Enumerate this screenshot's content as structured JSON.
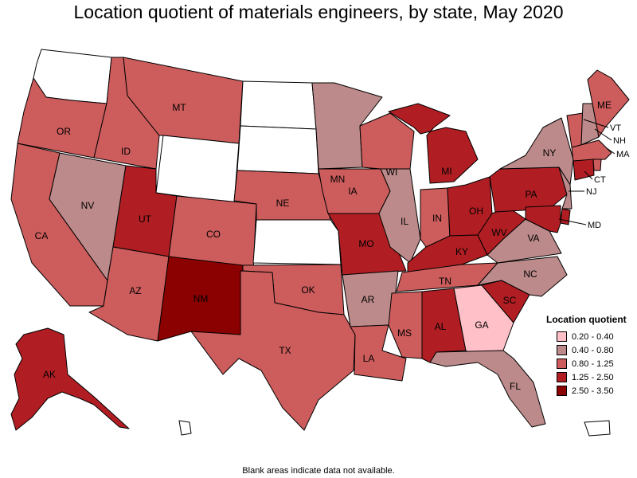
{
  "title": "Location quotient of materials engineers, by state, May 2020",
  "footnote": "Blank areas indicate data not available.",
  "legend": {
    "title": "Location quotient",
    "items": [
      {
        "label": "0.20 - 0.40",
        "color": "#ffc0c8"
      },
      {
        "label": "0.40 - 0.80",
        "color": "#bc8a8a"
      },
      {
        "label": "0.80 - 1.25",
        "color": "#cd5c5c"
      },
      {
        "label": "1.25 - 2.50",
        "color": "#b01e23"
      },
      {
        "label": "2.50 - 3.50",
        "color": "#8b0000"
      }
    ]
  },
  "no_data_color": "#ffffff",
  "states": {
    "WA": {
      "label": "",
      "class": "none"
    },
    "OR": {
      "label": "OR",
      "class": "0.80 - 1.25"
    },
    "CA": {
      "label": "CA",
      "class": "0.80 - 1.25"
    },
    "ID": {
      "label": "ID",
      "class": "0.80 - 1.25"
    },
    "NV": {
      "label": "NV",
      "class": "0.40 - 0.80"
    },
    "MT": {
      "label": "MT",
      "class": "0.80 - 1.25"
    },
    "WY": {
      "label": "",
      "class": "none"
    },
    "UT": {
      "label": "UT",
      "class": "1.25 - 2.50"
    },
    "AZ": {
      "label": "AZ",
      "class": "0.80 - 1.25"
    },
    "CO": {
      "label": "CO",
      "class": "0.80 - 1.25"
    },
    "NM": {
      "label": "NM",
      "class": "2.50 - 3.50"
    },
    "ND": {
      "label": "",
      "class": "none"
    },
    "SD": {
      "label": "",
      "class": "none"
    },
    "NE": {
      "label": "NE",
      "class": "0.80 - 1.25"
    },
    "KS": {
      "label": "",
      "class": "none"
    },
    "OK": {
      "label": "OK",
      "class": "0.80 - 1.25"
    },
    "TX": {
      "label": "TX",
      "class": "0.80 - 1.25"
    },
    "MN": {
      "label": "MN",
      "class": "0.40 - 0.80"
    },
    "IA": {
      "label": "IA",
      "class": "0.80 - 1.25"
    },
    "MO": {
      "label": "MO",
      "class": "1.25 - 2.50"
    },
    "AR": {
      "label": "AR",
      "class": "0.40 - 0.80"
    },
    "LA": {
      "label": "LA",
      "class": "0.80 - 1.25"
    },
    "WI": {
      "label": "WI",
      "class": "0.80 - 1.25"
    },
    "IL": {
      "label": "IL",
      "class": "0.40 - 0.80"
    },
    "MI": {
      "label": "MI",
      "class": "1.25 - 2.50"
    },
    "IN": {
      "label": "IN",
      "class": "0.80 - 1.25"
    },
    "OH": {
      "label": "OH",
      "class": "1.25 - 2.50"
    },
    "KY": {
      "label": "KY",
      "class": "1.25 - 2.50"
    },
    "TN": {
      "label": "TN",
      "class": "0.80 - 1.25"
    },
    "MS": {
      "label": "MS",
      "class": "0.80 - 1.25"
    },
    "AL": {
      "label": "AL",
      "class": "1.25 - 2.50"
    },
    "GA": {
      "label": "GA",
      "class": "0.20 - 0.40"
    },
    "FL": {
      "label": "FL",
      "class": "0.40 - 0.80"
    },
    "SC": {
      "label": "SC",
      "class": "1.25 - 2.50"
    },
    "NC": {
      "label": "NC",
      "class": "0.40 - 0.80"
    },
    "VA": {
      "label": "VA",
      "class": "0.40 - 0.80"
    },
    "WV": {
      "label": "WV",
      "class": "1.25 - 2.50"
    },
    "PA": {
      "label": "PA",
      "class": "1.25 - 2.50"
    },
    "NY": {
      "label": "NY",
      "class": "0.40 - 0.80"
    },
    "ME": {
      "label": "ME",
      "class": "0.80 - 1.25"
    },
    "VT": {
      "label": "VT",
      "class": "0.80 - 1.25"
    },
    "NH": {
      "label": "NH",
      "class": "0.40 - 0.80"
    },
    "MA": {
      "label": "MA",
      "class": "0.80 - 1.25"
    },
    "CT": {
      "label": "CT",
      "class": "1.25 - 2.50"
    },
    "RI": {
      "label": "",
      "class": "0.80 - 1.25"
    },
    "NJ": {
      "label": "NJ",
      "class": "0.40 - 0.80"
    },
    "DE": {
      "label": "",
      "class": "1.25 - 2.50"
    },
    "MD": {
      "label": "MD",
      "class": "1.25 - 2.50"
    },
    "AK": {
      "label": "AK",
      "class": "1.25 - 2.50"
    },
    "HI": {
      "label": "",
      "class": "none"
    },
    "PR": {
      "label": "",
      "class": "none"
    }
  }
}
